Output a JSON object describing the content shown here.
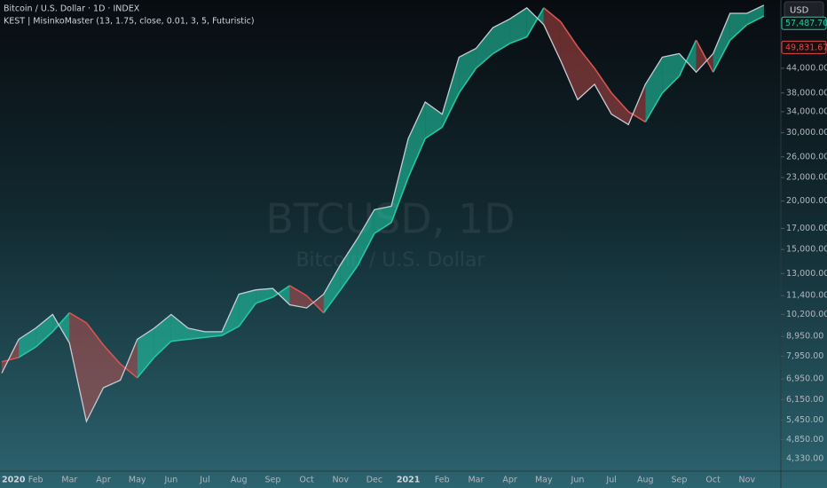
{
  "chart_data": {
    "type": "line",
    "header": "Bitcoin / U.S. Dollar · 1D · INDEX",
    "indicator": "KEST | MisinkoMaster (13, 1.75, close, 0.01, 3, 5, Futuristic)",
    "watermark": "BTCUSD, 1D",
    "watermark_subtitle": "Bitcoin / U.S. Dollar",
    "currency": "USD",
    "log_scale": true,
    "categories": [
      "2020",
      null,
      "Feb",
      null,
      "Mar",
      null,
      "Apr",
      null,
      "May",
      null,
      "Jun",
      null,
      "Jul",
      null,
      "Aug",
      null,
      "Sep",
      null,
      "Oct",
      null,
      "Nov",
      null,
      "Dec",
      null,
      "2021",
      null,
      "Feb",
      null,
      "Mar",
      null,
      "Apr",
      null,
      "May",
      null,
      "Jun",
      null,
      "Jul",
      null,
      "Aug",
      null,
      "Sep",
      null,
      "Oct",
      null,
      "Nov",
      null
    ],
    "values": [
      7200,
      8800,
      9400,
      10200,
      8600,
      5400,
      6600,
      6900,
      8800,
      9400,
      10200,
      9400,
      9200,
      9200,
      11500,
      11800,
      11900,
      10800,
      10600,
      11500,
      13700,
      16000,
      19000,
      19400,
      29000,
      36000,
      33500,
      47000,
      49500,
      56000,
      59000,
      63000,
      57000,
      46000,
      36500,
      40000,
      33500,
      31500,
      40000,
      47000,
      48000,
      43000,
      48000,
      61000,
      61000,
      64000
    ],
    "band": [
      7700,
      7900,
      8400,
      9200,
      10300,
      9700,
      8500,
      7600,
      7000,
      7900,
      8700,
      8800,
      8900,
      9000,
      9500,
      10900,
      11300,
      12100,
      11400,
      10300,
      11800,
      13600,
      16500,
      17600,
      23000,
      29000,
      31000,
      38000,
      44000,
      48000,
      51000,
      53000,
      63000,
      58000,
      50000,
      44000,
      38000,
      34000,
      32000,
      38000,
      42000,
      52000,
      43000,
      52000,
      57000,
      60000
    ],
    "color": "#c9ccd3",
    "up_color": "#22c7a4",
    "down_color": "#d9534f",
    "ylim": [
      4000,
      66000
    ],
    "yticks": [
      {
        "value": 44000,
        "label": "44,000.00"
      },
      {
        "value": 38000,
        "label": "38,000.00"
      },
      {
        "value": 34000,
        "label": "34,000.00"
      },
      {
        "value": 30000,
        "label": "30,000.00"
      },
      {
        "value": 26000,
        "label": "26,000.00"
      },
      {
        "value": 23000,
        "label": "23,000.00"
      },
      {
        "value": 20000,
        "label": "20,000.00"
      },
      {
        "value": 17000,
        "label": "17,000.00"
      },
      {
        "value": 15000,
        "label": "15,000.00"
      },
      {
        "value": 13000,
        "label": "13,000.00"
      },
      {
        "value": 11400,
        "label": "11,400.00"
      },
      {
        "value": 10200,
        "label": "10,200.00"
      },
      {
        "value": 8950,
        "label": "8,950.00"
      },
      {
        "value": 7950,
        "label": "7,950.00"
      },
      {
        "value": 6950,
        "label": "6,950.00"
      },
      {
        "value": 6150,
        "label": "6,150.00"
      },
      {
        "value": 5450,
        "label": "5,450.00"
      },
      {
        "value": 4850,
        "label": "4,850.00"
      },
      {
        "value": 4330,
        "label": "4,330.00"
      }
    ],
    "price_labels": [
      {
        "value": 57487.7,
        "label": "57,487.70",
        "color": "#22c7a4"
      },
      {
        "value": 49831.67,
        "label": "49,831.67",
        "color": "#e04848"
      }
    ]
  }
}
